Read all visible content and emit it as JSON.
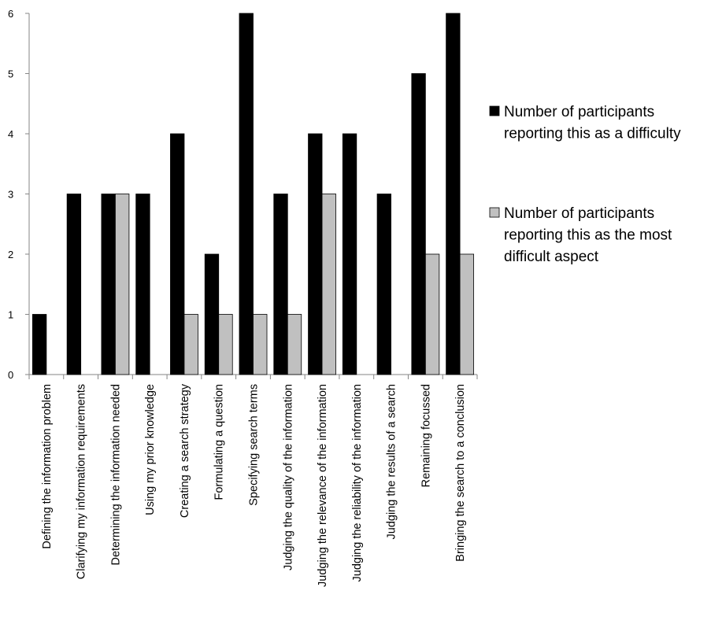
{
  "chart_data": {
    "type": "bar",
    "categories": [
      "Defining the information problem",
      "Clarifying my information requirements",
      "Determining the information needed",
      "Using my prior knowledge",
      "Creating a search strategy",
      "Formulating a question",
      "Specifying search terms",
      "Judging the quality of the information",
      "Judging the relevance of the information",
      "Judging the reliability of the information",
      "Judging the results of a search",
      "Remaining focussed",
      "Bringing the search to a conclusion"
    ],
    "series": [
      {
        "name": "Number of participants reporting this as a difficulty",
        "legend_lines": [
          "Number of participants",
          "reporting this as a difficulty"
        ],
        "color": "#000000",
        "values": [
          1,
          3,
          3,
          3,
          4,
          2,
          6,
          3,
          4,
          4,
          3,
          5,
          6
        ]
      },
      {
        "name": "Number of participants reporting this as the most difficult aspect",
        "legend_lines": [
          "Number of participants",
          "reporting this as the most",
          "difficult aspect"
        ],
        "color": "#c0c0c0",
        "values": [
          0,
          0,
          3,
          0,
          1,
          1,
          1,
          1,
          3,
          0,
          0,
          2,
          2
        ]
      }
    ],
    "y_ticks": [
      "0",
      "1",
      "2",
      "3",
      "4",
      "5",
      "6"
    ],
    "ylim": [
      0,
      6
    ],
    "grid": false,
    "legend_position": "right"
  }
}
